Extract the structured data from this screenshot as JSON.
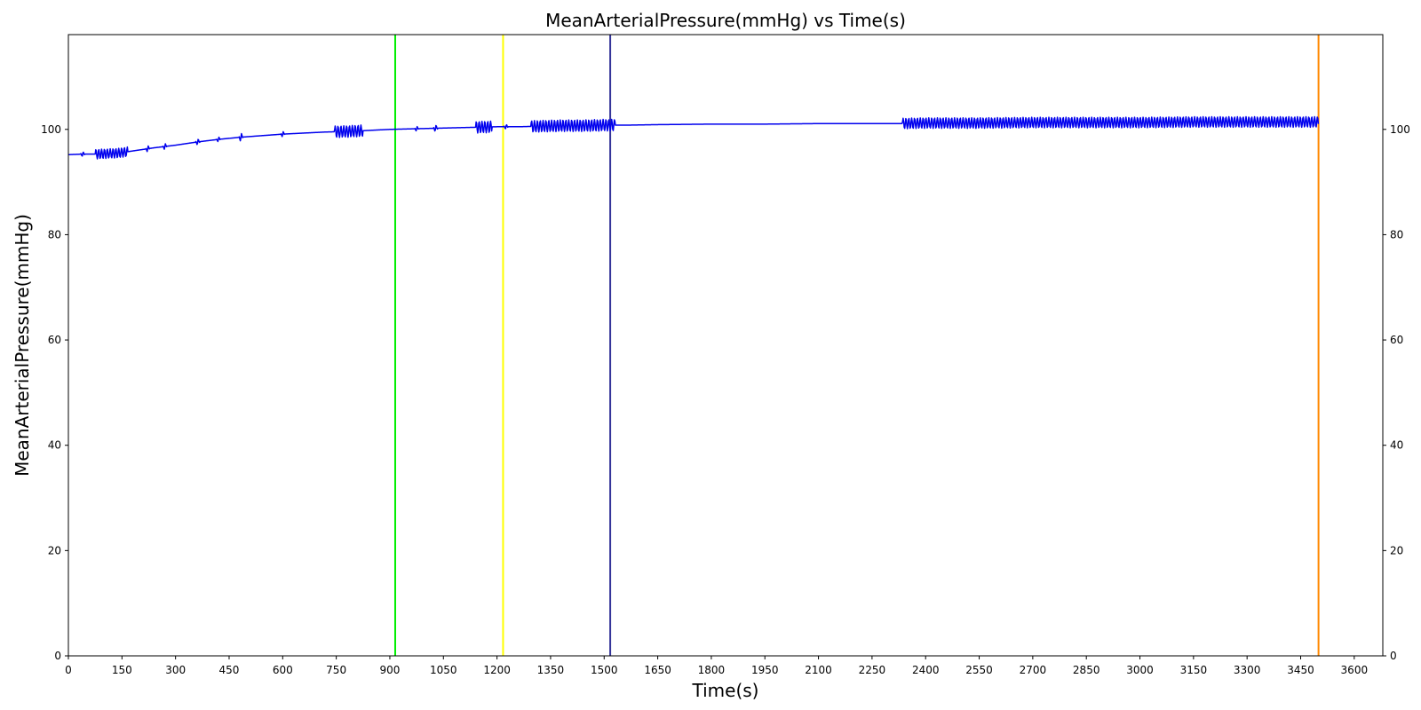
{
  "chart_data": {
    "type": "line",
    "title": "MeanArterialPressure(mmHg) vs Time(s)",
    "xlabel": "Time(s)",
    "ylabel": "MeanArterialPressure(mmHg)",
    "xlim": [
      0,
      3680
    ],
    "ylim": [
      0,
      118
    ],
    "x_ticks": [
      0,
      150,
      300,
      450,
      600,
      750,
      900,
      1050,
      1200,
      1350,
      1500,
      1650,
      1800,
      1950,
      2100,
      2250,
      2400,
      2550,
      2700,
      2850,
      3000,
      3150,
      3300,
      3450,
      3600
    ],
    "y_ticks": [
      0,
      20,
      40,
      60,
      80,
      100
    ],
    "right_axis_ticks": true,
    "grid": false,
    "legend": "none",
    "line_color": "#0000ee",
    "series": [
      {
        "x": [
          0,
          40,
          80,
          140,
          180,
          240,
          300,
          360,
          420,
          480,
          540,
          600,
          660,
          720,
          780,
          840,
          900,
          960,
          1020,
          1080,
          1140,
          1200,
          1260,
          1320,
          1380,
          1440,
          1500,
          1560,
          1650,
          1800,
          1950,
          2100,
          2250,
          2325,
          2400,
          2550,
          2700,
          2850,
          3000,
          3150,
          3300,
          3500
        ],
        "y": [
          95.2,
          95.3,
          95.3,
          95.5,
          95.9,
          96.5,
          97.0,
          97.6,
          98.1,
          98.5,
          98.8,
          99.1,
          99.3,
          99.5,
          99.6,
          99.8,
          100.0,
          100.1,
          100.2,
          100.3,
          100.4,
          100.5,
          100.5,
          100.6,
          100.7,
          100.7,
          100.8,
          100.8,
          100.9,
          101.0,
          101.0,
          101.1,
          101.1,
          101.1,
          101.2,
          101.2,
          101.3,
          101.3,
          101.3,
          101.4,
          101.4,
          101.4
        ]
      }
    ],
    "oscillation_bursts": [
      {
        "start": 75,
        "end": 165,
        "amplitude": 0.9
      },
      {
        "start": 745,
        "end": 825,
        "amplitude": 1.1
      },
      {
        "start": 1140,
        "end": 1185,
        "amplitude": 1.1
      },
      {
        "start": 1295,
        "end": 1530,
        "amplitude": 1.1
      },
      {
        "start": 2335,
        "end": 3500,
        "amplitude": 1.0
      }
    ],
    "blips": [
      {
        "x": 40,
        "amplitude": 0.7
      },
      {
        "x": 222,
        "amplitude": 0.9
      },
      {
        "x": 270,
        "amplitude": 0.9
      },
      {
        "x": 362,
        "amplitude": 0.9
      },
      {
        "x": 420,
        "amplitude": 0.7
      },
      {
        "x": 483,
        "amplitude": 1.2
      },
      {
        "x": 600,
        "amplitude": 0.8
      },
      {
        "x": 975,
        "amplitude": 0.7
      },
      {
        "x": 1028,
        "amplitude": 1.0
      },
      {
        "x": 1225,
        "amplitude": 0.7
      }
    ],
    "vertical_lines": [
      {
        "x": 915,
        "color": "#00ee00"
      },
      {
        "x": 1217,
        "color": "#ffff00"
      },
      {
        "x": 1517,
        "color": "#333399"
      },
      {
        "x": 3500,
        "color": "#ff8800"
      }
    ]
  }
}
